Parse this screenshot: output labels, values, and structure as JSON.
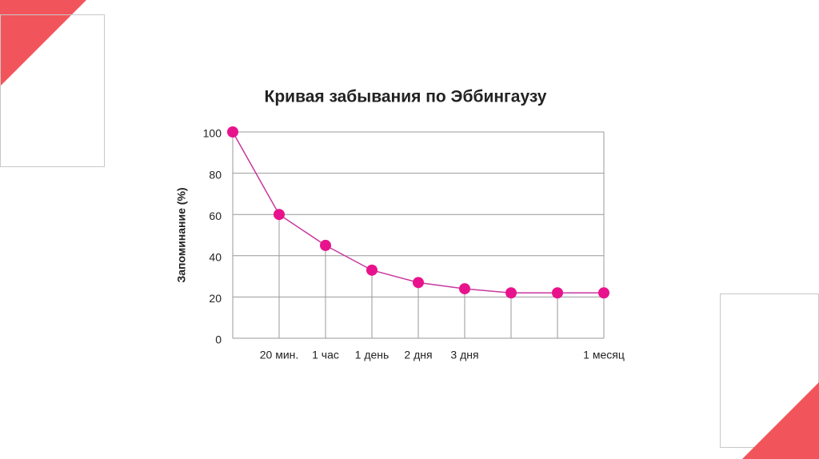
{
  "chart_data": {
    "type": "line",
    "title": "Кривая забывания по Эббингаузу",
    "y_label": "Запоминание (%)",
    "categories": [
      null,
      "20 мин.",
      "1 час",
      "1 день",
      "2 дня",
      "3 дня",
      null,
      null,
      "1 месяц"
    ],
    "values": [
      100,
      60,
      45,
      33,
      27,
      24,
      22,
      22,
      22
    ],
    "line_color": "#c8379e",
    "marker_color": "#e8138c",
    "ylim": [
      0,
      100
    ],
    "yticks": [
      0,
      20,
      40,
      60,
      80,
      100
    ],
    "grid": true
  }
}
